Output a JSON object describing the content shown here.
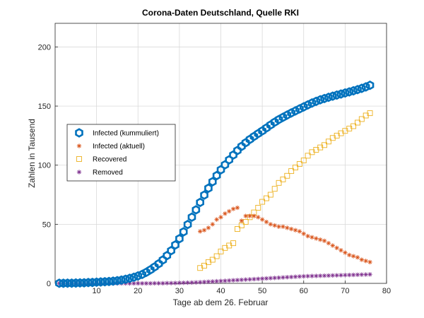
{
  "chart_data": {
    "type": "scatter",
    "title": "Corona-Daten Deutschland, Quelle RKI",
    "xlabel": "Tage ab dem 26. Februar",
    "ylabel": "Zahlen in Tausend",
    "xlim": [
      0,
      80
    ],
    "ylim": [
      0,
      220
    ],
    "xticks": [
      10,
      20,
      30,
      40,
      50,
      60,
      70,
      80
    ],
    "yticks": [
      0,
      50,
      100,
      150,
      200
    ],
    "grid": true,
    "legend_position": "left",
    "series": [
      {
        "name": "Infected (kummuliert)",
        "marker": "hexagon",
        "color": "#0072BD",
        "x": [
          1,
          2,
          3,
          4,
          5,
          6,
          7,
          8,
          9,
          10,
          11,
          12,
          13,
          14,
          15,
          16,
          17,
          18,
          19,
          20,
          21,
          22,
          23,
          24,
          25,
          26,
          27,
          28,
          29,
          30,
          31,
          32,
          33,
          34,
          35,
          36,
          37,
          38,
          39,
          40,
          41,
          42,
          43,
          44,
          45,
          46,
          47,
          48,
          49,
          50,
          51,
          52,
          53,
          54,
          55,
          56,
          57,
          58,
          59,
          60,
          61,
          62,
          63,
          64,
          65,
          66,
          67,
          68,
          69,
          70,
          71,
          72,
          73,
          74,
          75,
          76
        ],
        "y": [
          0.1,
          0.1,
          0.2,
          0.2,
          0.3,
          0.4,
          0.5,
          0.7,
          0.8,
          1.0,
          1.2,
          1.4,
          1.6,
          1.9,
          2.3,
          2.8,
          3.5,
          4.3,
          5.2,
          6.3,
          7.6,
          9.4,
          11.5,
          13.9,
          16.6,
          19.8,
          23.5,
          27.7,
          32.5,
          37.8,
          43.6,
          49.8,
          56.0,
          62.2,
          68.5,
          74.7,
          80.5,
          86.0,
          91.2,
          96.1,
          100.3,
          104.5,
          108.6,
          112.4,
          115.9,
          119.0,
          121.8,
          124.3,
          126.7,
          129.0,
          131.5,
          134.0,
          136.4,
          138.6,
          140.5,
          142.4,
          144.2,
          145.9,
          147.6,
          149.3,
          151.0,
          152.6,
          154.0,
          155.3,
          156.4,
          157.4,
          158.4,
          159.3,
          160.2,
          161.1,
          162.0,
          162.9,
          163.9,
          165.0,
          166.2,
          167.6
        ]
      },
      {
        "name": "Infected (aktuell)",
        "marker": "asterisk",
        "color": "#D95319",
        "x": [
          35,
          36,
          37,
          38,
          39,
          40,
          41,
          42,
          43,
          44,
          45,
          46,
          47,
          48,
          49,
          50,
          51,
          52,
          53,
          54,
          55,
          56,
          57,
          58,
          59,
          60,
          61,
          62,
          63,
          64,
          65,
          66,
          67,
          68,
          69,
          70,
          71,
          72,
          73,
          74,
          75,
          76
        ],
        "y": [
          44,
          45,
          47,
          50,
          54,
          56,
          59,
          61,
          63,
          64,
          53,
          57,
          57,
          57,
          56,
          54,
          52,
          50,
          49,
          48,
          48,
          47,
          46,
          45,
          44,
          42,
          40,
          39,
          38,
          37,
          36,
          34,
          32,
          30,
          28,
          26,
          24,
          23,
          22,
          20,
          19,
          18
        ]
      },
      {
        "name": "Recovered",
        "marker": "square",
        "color": "#EDB120",
        "x": [
          35,
          36,
          37,
          38,
          39,
          40,
          41,
          42,
          43,
          44,
          45,
          46,
          47,
          48,
          49,
          50,
          51,
          52,
          53,
          54,
          55,
          56,
          57,
          58,
          59,
          60,
          61,
          62,
          63,
          64,
          65,
          66,
          67,
          68,
          69,
          70,
          71,
          72,
          73,
          74,
          75,
          76
        ],
        "y": [
          13,
          15,
          18,
          20,
          23,
          27,
          30,
          32,
          34,
          46,
          49,
          52,
          56,
          60,
          64,
          69,
          72,
          75,
          80,
          85,
          88,
          91,
          95,
          98,
          101,
          104,
          108,
          111,
          113,
          115,
          117,
          120,
          123,
          125,
          127,
          129,
          131,
          133,
          136,
          139,
          142,
          144
        ]
      },
      {
        "name": "Removed",
        "marker": "asterisk",
        "color": "#7E2F8E",
        "x": [
          1,
          2,
          3,
          4,
          5,
          6,
          7,
          8,
          9,
          10,
          11,
          12,
          13,
          14,
          15,
          16,
          17,
          18,
          19,
          20,
          21,
          22,
          23,
          24,
          25,
          26,
          27,
          28,
          29,
          30,
          31,
          32,
          33,
          34,
          35,
          36,
          37,
          38,
          39,
          40,
          41,
          42,
          43,
          44,
          45,
          46,
          47,
          48,
          49,
          50,
          51,
          52,
          53,
          54,
          55,
          56,
          57,
          58,
          59,
          60,
          61,
          62,
          63,
          64,
          65,
          66,
          67,
          68,
          69,
          70,
          71,
          72,
          73,
          74,
          75,
          76
        ],
        "y": [
          0,
          0,
          0,
          0,
          0,
          0,
          0,
          0,
          0,
          0,
          0,
          0,
          0,
          0,
          0,
          0,
          0,
          0,
          0,
          0,
          0,
          0,
          0,
          0.1,
          0.1,
          0.1,
          0.2,
          0.2,
          0.3,
          0.4,
          0.5,
          0.6,
          0.7,
          0.8,
          1.0,
          1.2,
          1.4,
          1.6,
          1.8,
          2.0,
          2.2,
          2.4,
          2.6,
          2.8,
          3.0,
          3.2,
          3.4,
          3.6,
          3.8,
          4.0,
          4.2,
          4.4,
          4.6,
          4.8,
          5.0,
          5.2,
          5.4,
          5.6,
          5.8,
          6.0,
          6.1,
          6.2,
          6.3,
          6.4,
          6.5,
          6.6,
          6.7,
          6.8,
          6.9,
          7.0,
          7.1,
          7.2,
          7.3,
          7.4,
          7.5,
          7.6
        ]
      }
    ]
  }
}
